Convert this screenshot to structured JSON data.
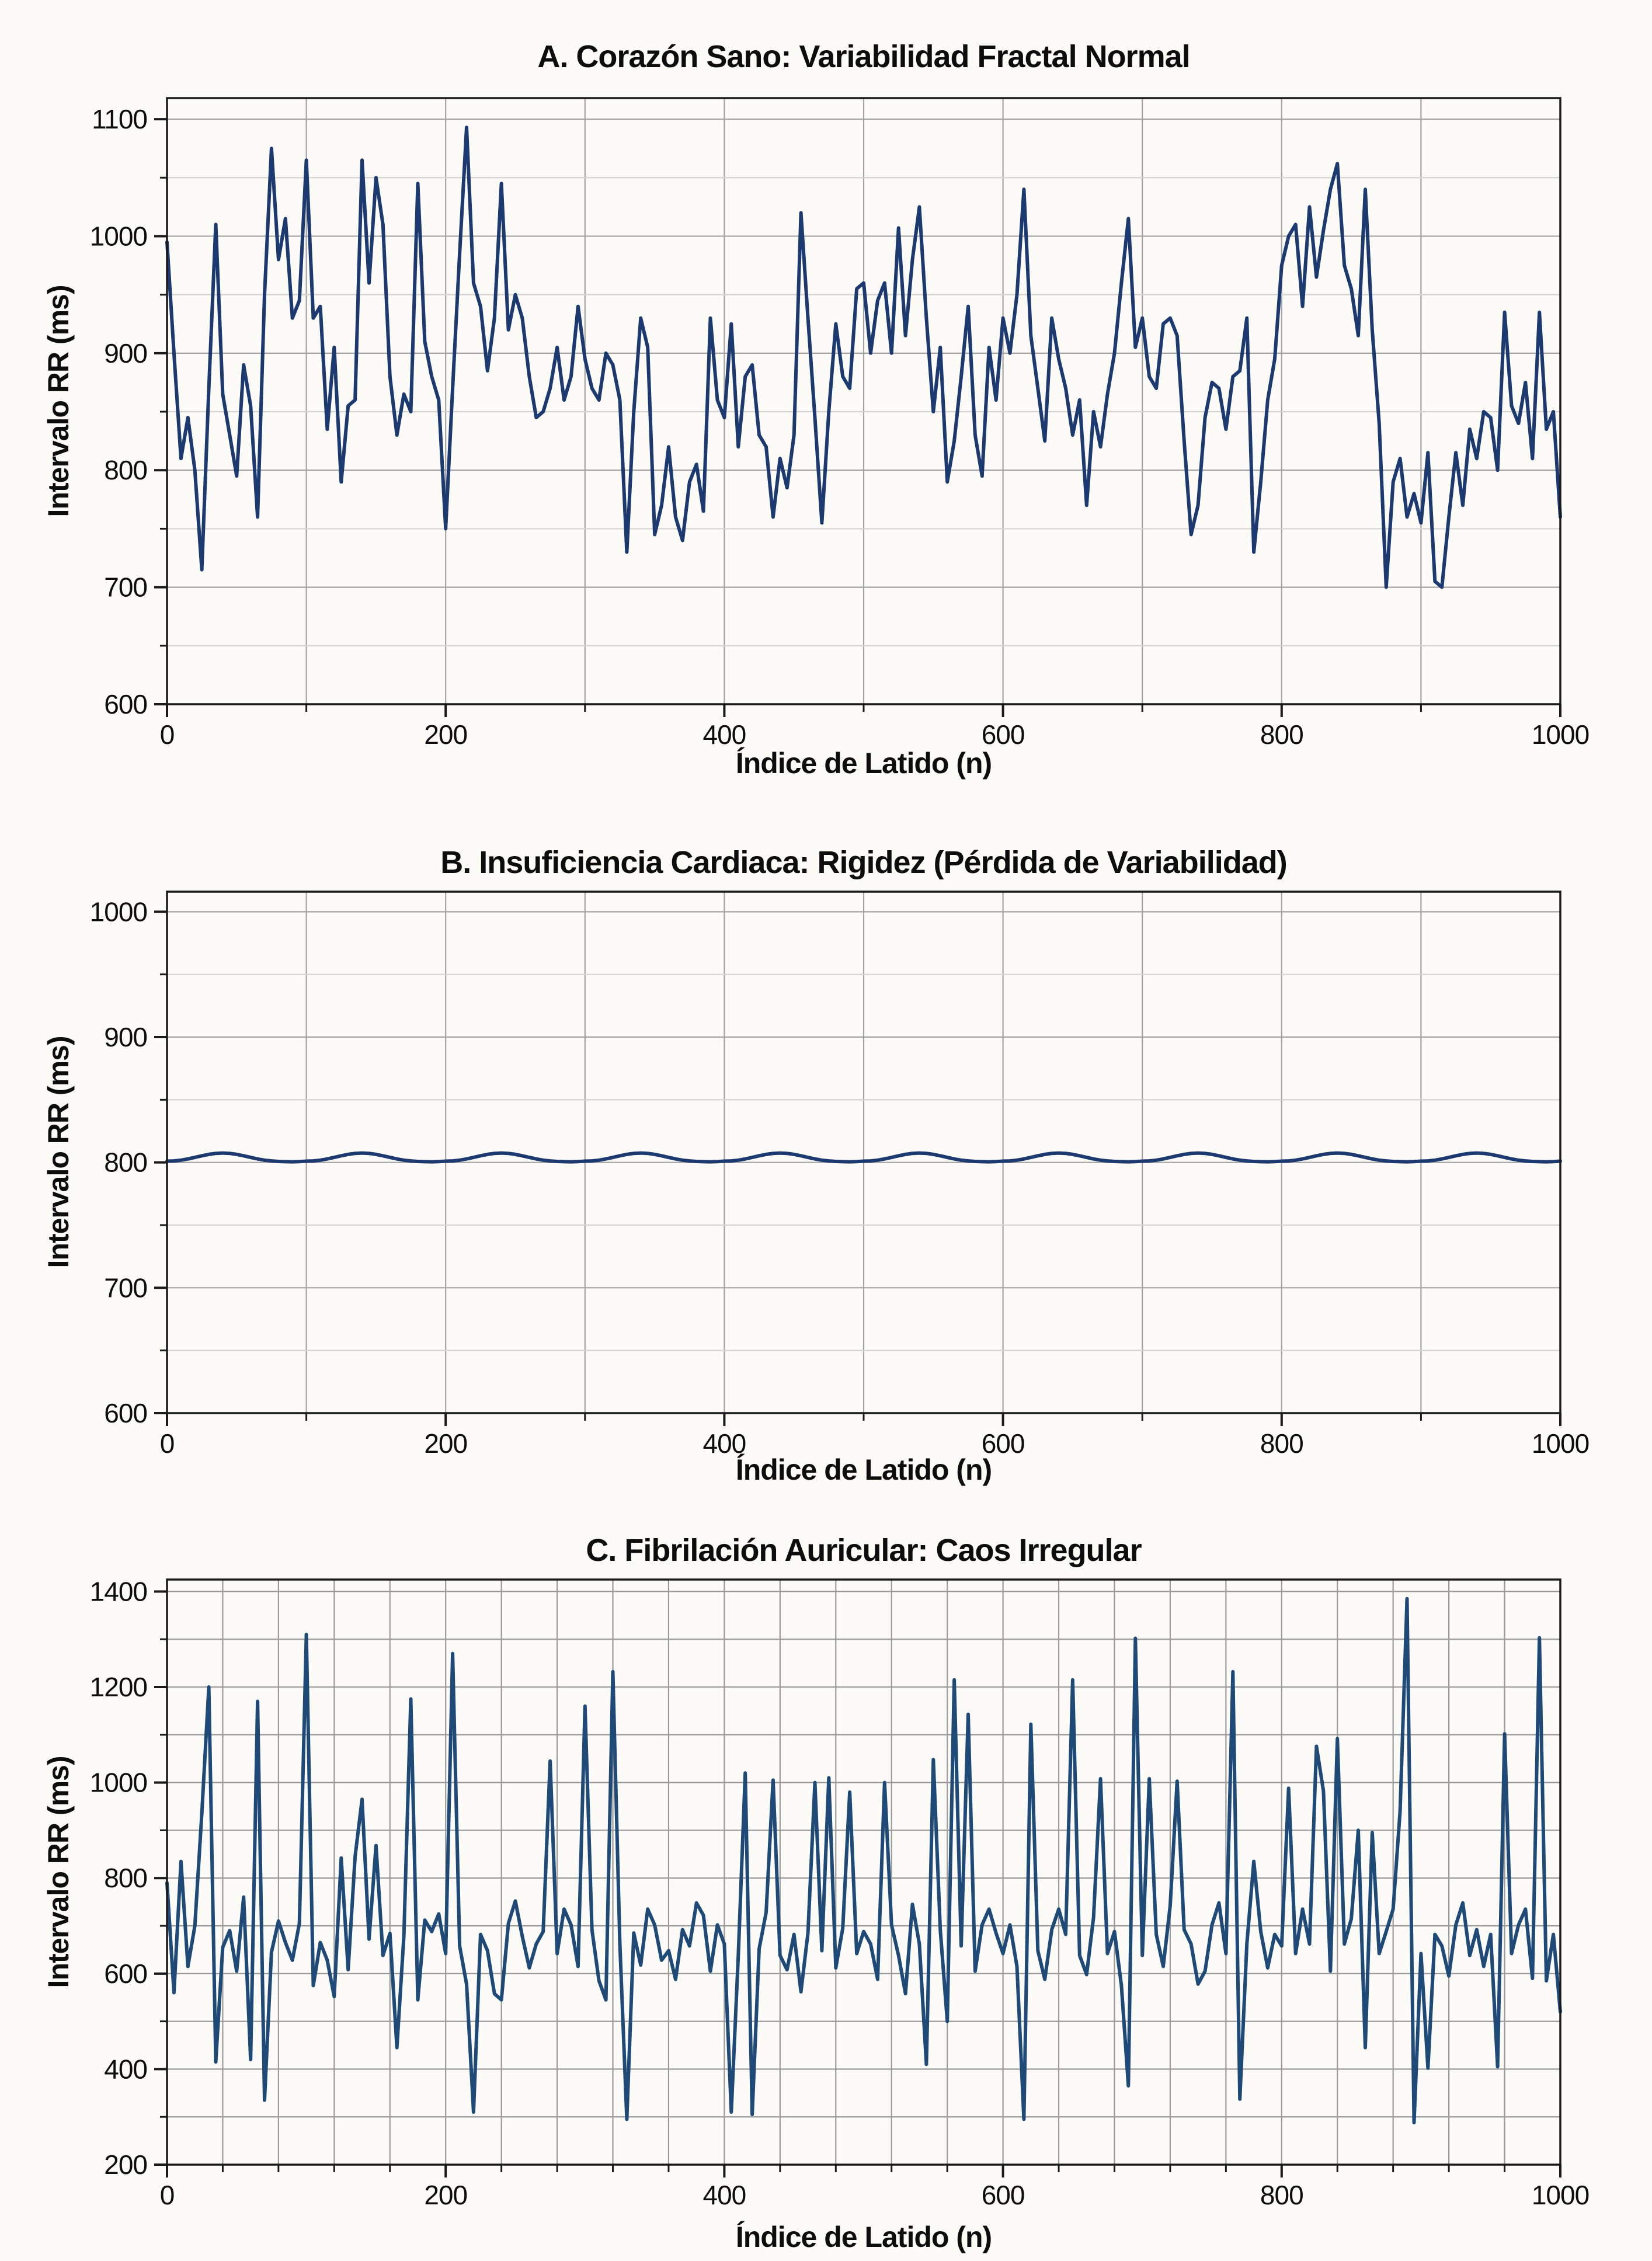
{
  "figure": {
    "background": "#fcfbf8",
    "text_color": "#0d0d0d",
    "spine_color": "#1a1a1a"
  },
  "chart_data": [
    {
      "type": "line",
      "panel": "A",
      "title": "A. Corazón Sano: Variabilidad Fractal Normal",
      "xlabel": "Índice de Latido (n)",
      "ylabel": "Intervalo RR (ms)",
      "xlim": [
        0,
        1000
      ],
      "ylim": [
        600,
        1118
      ],
      "xticks": [
        0,
        200,
        400,
        600,
        800,
        1000
      ],
      "yticks": [
        600,
        700,
        800,
        900,
        1000,
        1100
      ],
      "x_grid_interval": 100,
      "y_grid_interval": 50,
      "y_major_interval": 100,
      "grid_uniform": false,
      "legend": "none",
      "line_color": "#1c3a70",
      "grid_major_color": "#a3a3a3",
      "grid_minor_color": "#d6d4d0",
      "series": {
        "name": "Intervalo RR",
        "x_start": 0,
        "x_step": 5,
        "y": [
          995,
          900,
          810,
          845,
          800,
          715,
          870,
          1010,
          865,
          830,
          795,
          890,
          855,
          760,
          950,
          1075,
          980,
          1015,
          930,
          945,
          1065,
          930,
          940,
          835,
          905,
          790,
          855,
          860,
          1065,
          960,
          1050,
          1010,
          880,
          830,
          865,
          850,
          1045,
          910,
          880,
          860,
          750,
          870,
          985,
          1093,
          960,
          940,
          885,
          930,
          1045,
          920,
          950,
          930,
          880,
          845,
          850,
          870,
          905,
          860,
          880,
          940,
          895,
          870,
          860,
          900,
          890,
          860,
          730,
          850,
          930,
          905,
          745,
          770,
          820,
          760,
          740,
          790,
          805,
          765,
          930,
          860,
          845,
          925,
          820,
          880,
          890,
          830,
          820,
          760,
          810,
          785,
          830,
          1020,
          930,
          845,
          755,
          850,
          925,
          880,
          870,
          955,
          960,
          900,
          945,
          960,
          900,
          1007,
          915,
          980,
          1025,
          930,
          850,
          905,
          790,
          825,
          880,
          940,
          830,
          795,
          905,
          860,
          930,
          900,
          950,
          1040,
          915,
          870,
          825,
          930,
          895,
          870,
          830,
          860,
          770,
          850,
          820,
          865,
          900,
          960,
          1015,
          905,
          930,
          880,
          870,
          925,
          930,
          915,
          825,
          745,
          770,
          845,
          875,
          870,
          835,
          880,
          885,
          930,
          730,
          790,
          860,
          895,
          975,
          1000,
          1010,
          940,
          1025,
          965,
          1005,
          1040,
          1062,
          975,
          955,
          915,
          1040,
          920,
          840,
          700,
          790,
          810,
          760,
          780,
          755,
          815,
          705,
          700,
          760,
          815,
          770,
          835,
          810,
          850,
          845,
          800,
          935,
          855,
          840,
          875,
          810,
          935,
          835,
          850,
          760
        ]
      }
    },
    {
      "type": "line",
      "panel": "B",
      "title": "B. Insuficiencia Cardiaca: Rigidez (Pérdida de Variabilidad)",
      "xlabel": "Índice de Latido (n)",
      "ylabel": "Intervalo RR (ms)",
      "xlim": [
        0,
        1000
      ],
      "ylim": [
        600,
        1016
      ],
      "xticks": [
        0,
        200,
        400,
        600,
        800,
        1000
      ],
      "yticks": [
        600,
        700,
        800,
        900,
        1000
      ],
      "x_grid_interval": 100,
      "y_grid_interval": 50,
      "y_major_interval": 100,
      "grid_uniform": false,
      "legend": "none",
      "line_color": "#1c3a70",
      "grid_major_color": "#a3a3a3",
      "grid_minor_color": "#d6d4d0",
      "series": {
        "name": "Intervalo RR",
        "x_start": 0,
        "x_step": 5,
        "y": [
          801,
          801.2,
          801.8,
          802.8,
          804,
          805.3,
          806.4,
          807.2,
          807.5,
          807.2,
          806.4,
          805.3,
          804,
          802.8,
          801.8,
          801.2,
          800.8,
          800.6,
          800.5,
          800.7,
          801,
          801.2,
          801.8,
          802.8,
          804,
          805.3,
          806.4,
          807.2,
          807.5,
          807.2,
          806.4,
          805.3,
          804,
          802.8,
          801.8,
          801.2,
          800.8,
          800.6,
          800.5,
          800.7,
          801,
          801.2,
          801.8,
          802.8,
          804,
          805.3,
          806.4,
          807.2,
          807.5,
          807.2,
          806.4,
          805.3,
          804,
          802.8,
          801.8,
          801.2,
          800.8,
          800.6,
          800.5,
          800.7,
          801,
          801.2,
          801.8,
          802.8,
          804,
          805.3,
          806.4,
          807.2,
          807.5,
          807.2,
          806.4,
          805.3,
          804,
          802.8,
          801.8,
          801.2,
          800.8,
          800.6,
          800.5,
          800.7,
          801,
          801.2,
          801.8,
          802.8,
          804,
          805.3,
          806.4,
          807.2,
          807.5,
          807.2,
          806.4,
          805.3,
          804,
          802.8,
          801.8,
          801.2,
          800.8,
          800.6,
          800.5,
          800.7,
          801,
          801.2,
          801.8,
          802.8,
          804,
          805.3,
          806.4,
          807.2,
          807.5,
          807.2,
          806.4,
          805.3,
          804,
          802.8,
          801.8,
          801.2,
          800.8,
          800.6,
          800.5,
          800.7,
          801,
          801.2,
          801.8,
          802.8,
          804,
          805.3,
          806.4,
          807.2,
          807.5,
          807.2,
          806.4,
          805.3,
          804,
          802.8,
          801.8,
          801.2,
          800.8,
          800.6,
          800.5,
          800.7,
          801,
          801.2,
          801.8,
          802.8,
          804,
          805.3,
          806.4,
          807.2,
          807.5,
          807.2,
          806.4,
          805.3,
          804,
          802.8,
          801.8,
          801.2,
          800.8,
          800.6,
          800.5,
          800.7,
          801,
          801.2,
          801.8,
          802.8,
          804,
          805.3,
          806.4,
          807.2,
          807.5,
          807.2,
          806.4,
          805.3,
          804,
          802.8,
          801.8,
          801.2,
          800.8,
          800.6,
          800.5,
          800.7,
          801,
          801.2,
          801.8,
          802.8,
          804,
          805.3,
          806.4,
          807.2,
          807.5,
          807.2,
          806.4,
          805.3,
          804,
          802.8,
          801.8,
          801.2,
          800.8,
          800.6,
          800.5,
          800.7,
          801
        ]
      }
    },
    {
      "type": "line",
      "panel": "C",
      "title": "C. Fibrilación Auricular: Caos Irregular",
      "xlabel": "Índice de Latido (n)",
      "ylabel": "Intervalo RR (ms)",
      "xlim": [
        0,
        1000
      ],
      "ylim": [
        200,
        1425
      ],
      "xticks": [
        0,
        200,
        400,
        600,
        800,
        1000
      ],
      "yticks": [
        200,
        400,
        600,
        800,
        1000,
        1200,
        1400
      ],
      "x_grid_interval": 40,
      "y_grid_interval": 100,
      "y_major_interval": 200,
      "grid_uniform": true,
      "legend": "none",
      "line_color": "#1f4a78",
      "grid_major_color": "#9a9a9a",
      "grid_minor_color": "#9a9a9a",
      "series": {
        "name": "Intervalo RR",
        "x_start": 0,
        "x_step": 5,
        "y": [
          790,
          560,
          835,
          615,
          700,
          935,
          1200,
          415,
          655,
          690,
          605,
          760,
          420,
          1170,
          335,
          645,
          710,
          665,
          628,
          705,
          1310,
          575,
          665,
          628,
          552,
          842,
          608,
          845,
          965,
          672,
          868,
          638,
          684,
          445,
          678,
          1175,
          545,
          712,
          688,
          725,
          642,
          1270,
          658,
          578,
          310,
          682,
          648,
          558,
          545,
          705,
          752,
          678,
          612,
          662,
          688,
          1045,
          642,
          735,
          702,
          615,
          1160,
          692,
          585,
          545,
          1232,
          662,
          295,
          685,
          618,
          735,
          702,
          628,
          648,
          588,
          692,
          658,
          748,
          722,
          605,
          702,
          662,
          310,
          638,
          1020,
          305,
          652,
          728,
          1005,
          638,
          608,
          682,
          562,
          685,
          1000,
          648,
          1010,
          612,
          695,
          980,
          642,
          688,
          662,
          588,
          1000,
          702,
          638,
          558,
          745,
          662,
          410,
          1048,
          692,
          500,
          1215,
          658,
          1143,
          605,
          702,
          735,
          685,
          642,
          702,
          615,
          295,
          1122,
          648,
          588,
          692,
          735,
          682,
          1215,
          638,
          598,
          718,
          1008,
          642,
          688,
          575,
          365,
          1302,
          638,
          1008,
          682,
          615,
          742,
          1003,
          692,
          662,
          578,
          605,
          702,
          748,
          642,
          1232,
          337,
          662,
          835,
          688,
          612,
          682,
          658,
          988,
          642,
          735,
          662,
          1076,
          982,
          605,
          1092,
          662,
          715,
          900,
          445,
          895,
          642,
          688,
          735,
          940,
          1385,
          288,
          642,
          402,
          682,
          658,
          595,
          702,
          748,
          638,
          692,
          615,
          682,
          405,
          1102,
          642,
          702,
          735,
          590,
          1303,
          585,
          682,
          520
        ]
      }
    }
  ]
}
